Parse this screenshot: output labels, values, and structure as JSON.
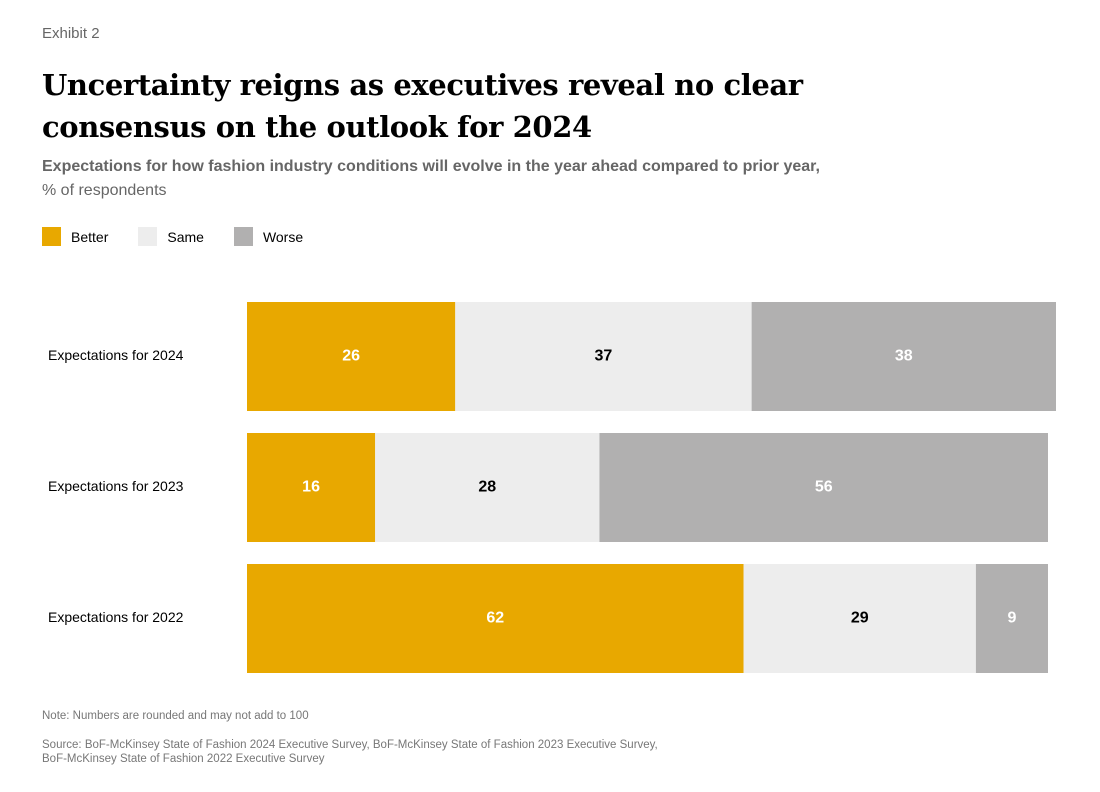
{
  "exhibit_label": "Exhibit 2",
  "title": "Uncertainty reigns as executives reveal no clear consensus on the outlook for 2024",
  "subtitle": {
    "bold": "Expectations for how fashion industry conditions will evolve in the year ahead compared to prior year,",
    "normal": "% of respondents"
  },
  "legend": [
    {
      "label": "Better",
      "color": "#E8A800"
    },
    {
      "label": "Same",
      "color": "#EDEDED"
    },
    {
      "label": "Worse",
      "color": "#B1B0B0"
    }
  ],
  "note": "Note: Numbers are rounded and may not add to 100",
  "source": "Source: BoF-McKinsey State of Fashion 2024 Executive Survey, BoF-McKinsey State of Fashion 2023 Executive Survey, BoF-McKinsey State of Fashion 2022 Executive Survey",
  "chart_data": {
    "type": "bar",
    "orientation": "horizontal",
    "stacked": true,
    "categories": [
      "Expectations for 2024",
      "Expectations for 2023",
      "Expectations for 2022"
    ],
    "series": [
      {
        "name": "Better",
        "color": "#E8A800",
        "label_color": "#ffffff",
        "values": [
          26,
          16,
          62
        ]
      },
      {
        "name": "Same",
        "color": "#EDEDED",
        "label_color": "#000000",
        "values": [
          37,
          28,
          29
        ]
      },
      {
        "name": "Worse",
        "color": "#B1B0B0",
        "label_color": "#ffffff",
        "values": [
          38,
          56,
          9
        ]
      }
    ],
    "xlim": [
      0,
      101
    ],
    "title": "Uncertainty reigns as executives reveal no clear consensus on the outlook for 2024",
    "xlabel": "",
    "ylabel": "",
    "grid": false,
    "legend_position": "top-left"
  }
}
